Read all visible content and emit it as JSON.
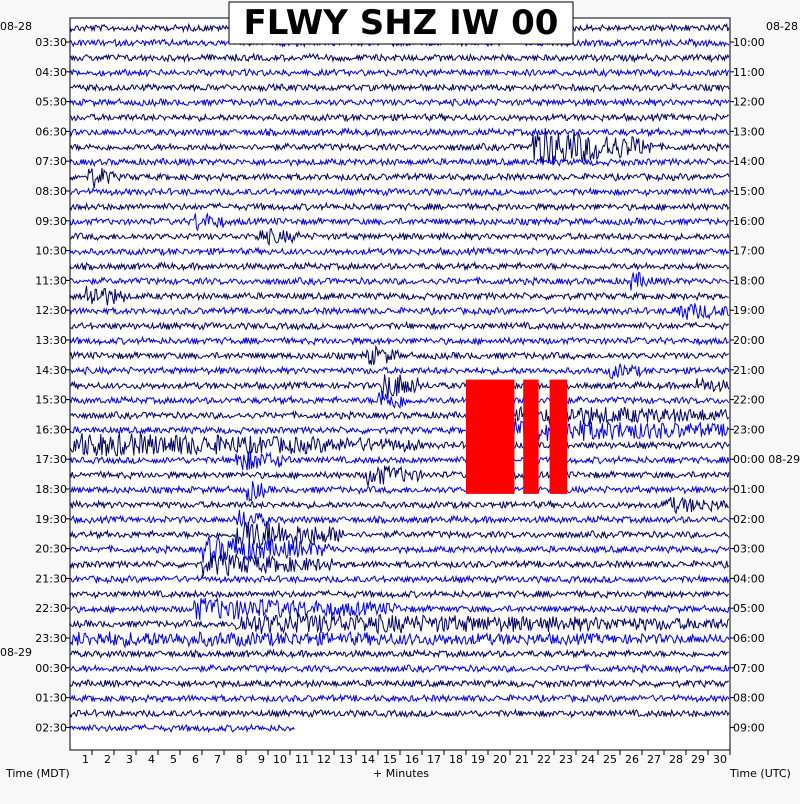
{
  "chart_data": {
    "type": "line",
    "title": "FLWY SHZ IW 00",
    "xlabel": "+ Minutes",
    "left_axis_title": "Time (MDT)",
    "right_axis_title": "Time (UTC)",
    "left_date_labels": [
      "08-28",
      "08-29"
    ],
    "right_date_labels": [
      "08-28",
      "08-29"
    ],
    "x_ticks": [
      1,
      2,
      3,
      4,
      5,
      6,
      7,
      8,
      9,
      10,
      11,
      12,
      13,
      14,
      15,
      16,
      17,
      18,
      19,
      20,
      21,
      22,
      23,
      24,
      25,
      26,
      27,
      28,
      29,
      30
    ],
    "xlim": [
      0,
      30
    ],
    "left_tick_labels": [
      "03:30",
      "04:30",
      "05:30",
      "06:30",
      "07:30",
      "08:30",
      "09:30",
      "10:30",
      "11:30",
      "12:30",
      "13:30",
      "14:30",
      "15:30",
      "16:30",
      "17:30",
      "18:30",
      "19:30",
      "20:30",
      "21:30",
      "22:30",
      "23:30",
      "00:30",
      "01:30",
      "02:30"
    ],
    "right_tick_labels": [
      "10:00",
      "11:00",
      "12:00",
      "13:00",
      "14:00",
      "15:00",
      "16:00",
      "17:00",
      "18:00",
      "19:00",
      "20:00",
      "21:00",
      "22:00",
      "23:00",
      "00:00 08-29",
      "01:00",
      "02:00",
      "03:00",
      "04:00",
      "05:00",
      "06:00",
      "07:00",
      "08:00",
      "09:00"
    ],
    "series_colors": [
      "#000066",
      "#0000ee"
    ],
    "clip_color": "#ff0000",
    "grid": false,
    "trace_count": 48,
    "events": [
      {
        "trace": 8,
        "start_min": 21.0,
        "end_min": 26.5,
        "amplitude": 3.0
      },
      {
        "trace": 10,
        "start_min": 0.8,
        "end_min": 2.0,
        "amplitude": 1.6
      },
      {
        "trace": 13,
        "start_min": 5.5,
        "end_min": 7.0,
        "amplitude": 1.3
      },
      {
        "trace": 14,
        "start_min": 8.5,
        "end_min": 10.5,
        "amplitude": 1.0
      },
      {
        "trace": 17,
        "start_min": 25.5,
        "end_min": 26.5,
        "amplitude": 1.2
      },
      {
        "trace": 18,
        "start_min": 0.6,
        "end_min": 2.5,
        "amplitude": 1.8
      },
      {
        "trace": 19,
        "start_min": 27.5,
        "end_min": 30,
        "amplitude": 1.2
      },
      {
        "trace": 22,
        "start_min": 13.5,
        "end_min": 15.0,
        "amplitude": 1.3
      },
      {
        "trace": 23,
        "start_min": 24.5,
        "end_min": 26.0,
        "amplitude": 0.9
      },
      {
        "trace": 24,
        "start_min": 28.5,
        "end_min": 30,
        "amplitude": 0.9
      },
      {
        "trace": 24,
        "start_min": 14.2,
        "end_min": 16.0,
        "amplitude": 2.2
      },
      {
        "trace": 25,
        "start_min": 14.0,
        "end_min": 15.5,
        "amplitude": 1.6
      },
      {
        "trace": 26,
        "start_min": 18.0,
        "end_min": 30,
        "amplitude": 1.5
      },
      {
        "trace": 27,
        "start_min": 18.0,
        "end_min": 30,
        "amplitude": 1.8
      },
      {
        "trace": 28,
        "start_min": 0.0,
        "end_min": 16.0,
        "amplitude": 1.6
      },
      {
        "trace": 29,
        "start_min": 7.5,
        "end_min": 10.0,
        "amplitude": 1.5
      },
      {
        "trace": 30,
        "start_min": 13.5,
        "end_min": 16.0,
        "amplitude": 1.5
      },
      {
        "trace": 31,
        "start_min": 8.0,
        "end_min": 9.0,
        "amplitude": 1.6
      },
      {
        "trace": 32,
        "start_min": 27.0,
        "end_min": 30,
        "amplitude": 1.0
      },
      {
        "trace": 33,
        "start_min": 7.5,
        "end_min": 9.0,
        "amplitude": 1.5
      },
      {
        "trace": 34,
        "start_min": 7.5,
        "end_min": 12.5,
        "amplitude": 2.4
      },
      {
        "trace": 35,
        "start_min": 6.0,
        "end_min": 12.0,
        "amplitude": 1.8
      },
      {
        "trace": 36,
        "start_min": 6.0,
        "end_min": 12.0,
        "amplitude": 1.5
      },
      {
        "trace": 39,
        "start_min": 5.5,
        "end_min": 15.0,
        "amplitude": 1.5
      },
      {
        "trace": 40,
        "start_min": 7.5,
        "end_min": 30,
        "amplitude": 1.3
      },
      {
        "trace": 41,
        "start_min": 0.0,
        "end_min": 30,
        "amplitude": 0.8
      }
    ],
    "clipped_intervals": [
      {
        "start_trace": 24,
        "end_trace": 31,
        "start_min": 18.0,
        "end_min": 20.2
      },
      {
        "start_trace": 24,
        "end_trace": 31,
        "start_min": 20.6,
        "end_min": 21.3
      },
      {
        "start_trace": 24,
        "end_trace": 31,
        "start_min": 21.8,
        "end_min": 22.6
      }
    ],
    "last_trace_end_min": 10.2
  }
}
